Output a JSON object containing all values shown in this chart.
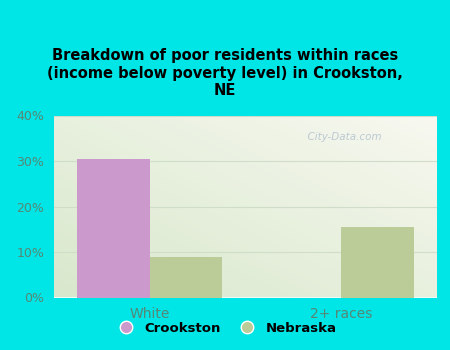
{
  "title": "Breakdown of poor residents within races\n(income below poverty level) in Crookston,\nNE",
  "categories": [
    "White",
    "2+ races"
  ],
  "crookston_values": [
    30.5,
    0
  ],
  "nebraska_values": [
    9.0,
    15.5
  ],
  "crookston_color": "#cc99cc",
  "nebraska_color": "#bbcc99",
  "background_color": "#00e5e5",
  "ylim": [
    0,
    40
  ],
  "yticks": [
    0,
    10,
    20,
    30,
    40
  ],
  "bar_width": 0.38,
  "legend_labels": [
    "Crookston",
    "Nebraska"
  ],
  "watermark": "  City-Data.com",
  "tick_color": "#558877",
  "grid_color": "#d0ddc8",
  "spine_color": "#00e5e5"
}
